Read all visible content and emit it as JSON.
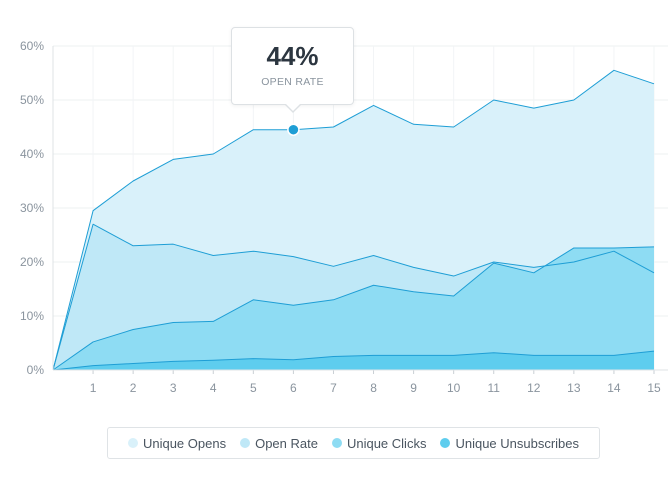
{
  "chart_data": {
    "type": "area",
    "x": [
      0,
      1,
      2,
      3,
      4,
      5,
      6,
      7,
      8,
      9,
      10,
      11,
      12,
      13,
      14,
      15
    ],
    "x_tick_labels": [
      "1",
      "2",
      "3",
      "4",
      "5",
      "6",
      "7",
      "8",
      "9",
      "10",
      "11",
      "12",
      "13",
      "14",
      "15"
    ],
    "y_tick_labels": [
      "0%",
      "10%",
      "20%",
      "30%",
      "40%",
      "50%",
      "60%"
    ],
    "ylim": [
      0,
      60
    ],
    "grid": true,
    "legend_position": "bottom",
    "series": [
      {
        "name": "Unique Opens",
        "color": "#d9f1fa",
        "values": [
          0,
          29.5,
          35,
          39,
          40,
          44.5,
          44.5,
          45,
          49,
          45.5,
          45,
          50,
          48.5,
          50,
          55.5,
          53
        ]
      },
      {
        "name": "Open Rate",
        "color": "#bfe8f7",
        "values": [
          0,
          27,
          23,
          23.3,
          21.2,
          22,
          21,
          19.2,
          21.2,
          19,
          17.4,
          20,
          19,
          20,
          22,
          18
        ]
      },
      {
        "name": "Unique Clicks",
        "color": "#8edcf3",
        "values": [
          0,
          5.2,
          7.5,
          8.8,
          9,
          13,
          12,
          13,
          15.7,
          14.5,
          13.7,
          19.8,
          18,
          22.6,
          22.6,
          22.8
        ]
      },
      {
        "name": "Unique Unsubscribes",
        "color": "#5ecdee",
        "values": [
          0,
          0.8,
          1.2,
          1.6,
          1.8,
          2.1,
          1.9,
          2.5,
          2.7,
          2.7,
          2.7,
          3.2,
          2.7,
          2.7,
          2.7,
          3.5
        ]
      }
    ],
    "line_color": "#1e9ed5",
    "highlight": {
      "x": 6,
      "y": 44.5,
      "value_text": "44%",
      "label_text": "OPEN RATE",
      "color": "#1e9ed5"
    }
  }
}
